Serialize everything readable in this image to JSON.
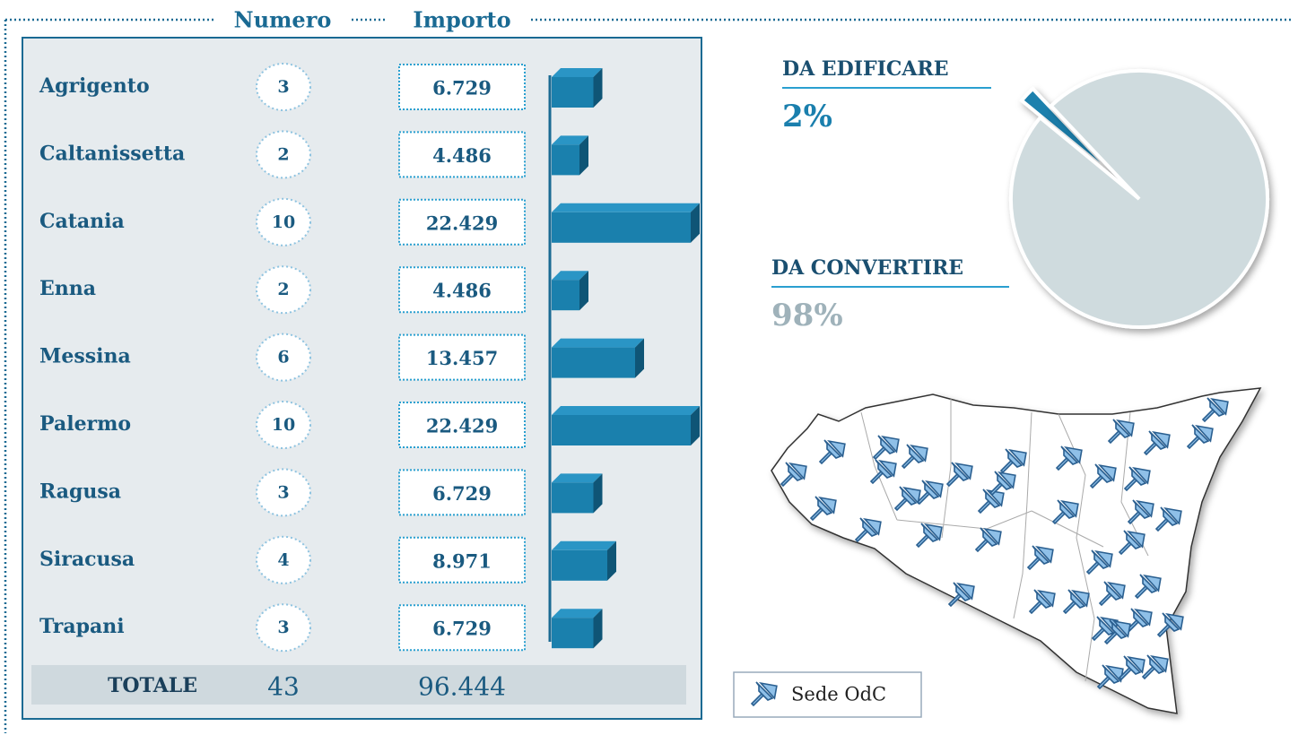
{
  "chart_data": [
    {
      "type": "bar",
      "categories": [
        "Agrigento",
        "Caltanissetta",
        "Catania",
        "Enna",
        "Messina",
        "Palermo",
        "Ragusa",
        "Siracusa",
        "Trapani"
      ],
      "series": [
        {
          "name": "Numero",
          "values": [
            3,
            2,
            10,
            2,
            6,
            10,
            3,
            4,
            3
          ]
        },
        {
          "name": "Importo",
          "color": "#1a80ad",
          "values": [
            6729,
            4486,
            22429,
            4486,
            13457,
            22429,
            6729,
            8971,
            6729
          ],
          "value_labels": [
            "6.729",
            "4.486",
            "22.429",
            "4.486",
            "13.457",
            "22.429",
            "6.729",
            "8.971",
            "6.729"
          ]
        }
      ],
      "total": {
        "label": "TOTALE",
        "numero": 43,
        "importo": 96444,
        "importo_label": "96.444"
      }
    },
    {
      "type": "pie",
      "categories": [
        "DA EDIFICARE",
        "DA CONVERTIRE"
      ],
      "values": [
        2,
        98
      ],
      "value_labels": [
        "2%",
        "98%"
      ],
      "colors": [
        "#1a80ad",
        "#cfdbde"
      ]
    }
  ],
  "legend": {
    "label": "Sede OdC"
  }
}
